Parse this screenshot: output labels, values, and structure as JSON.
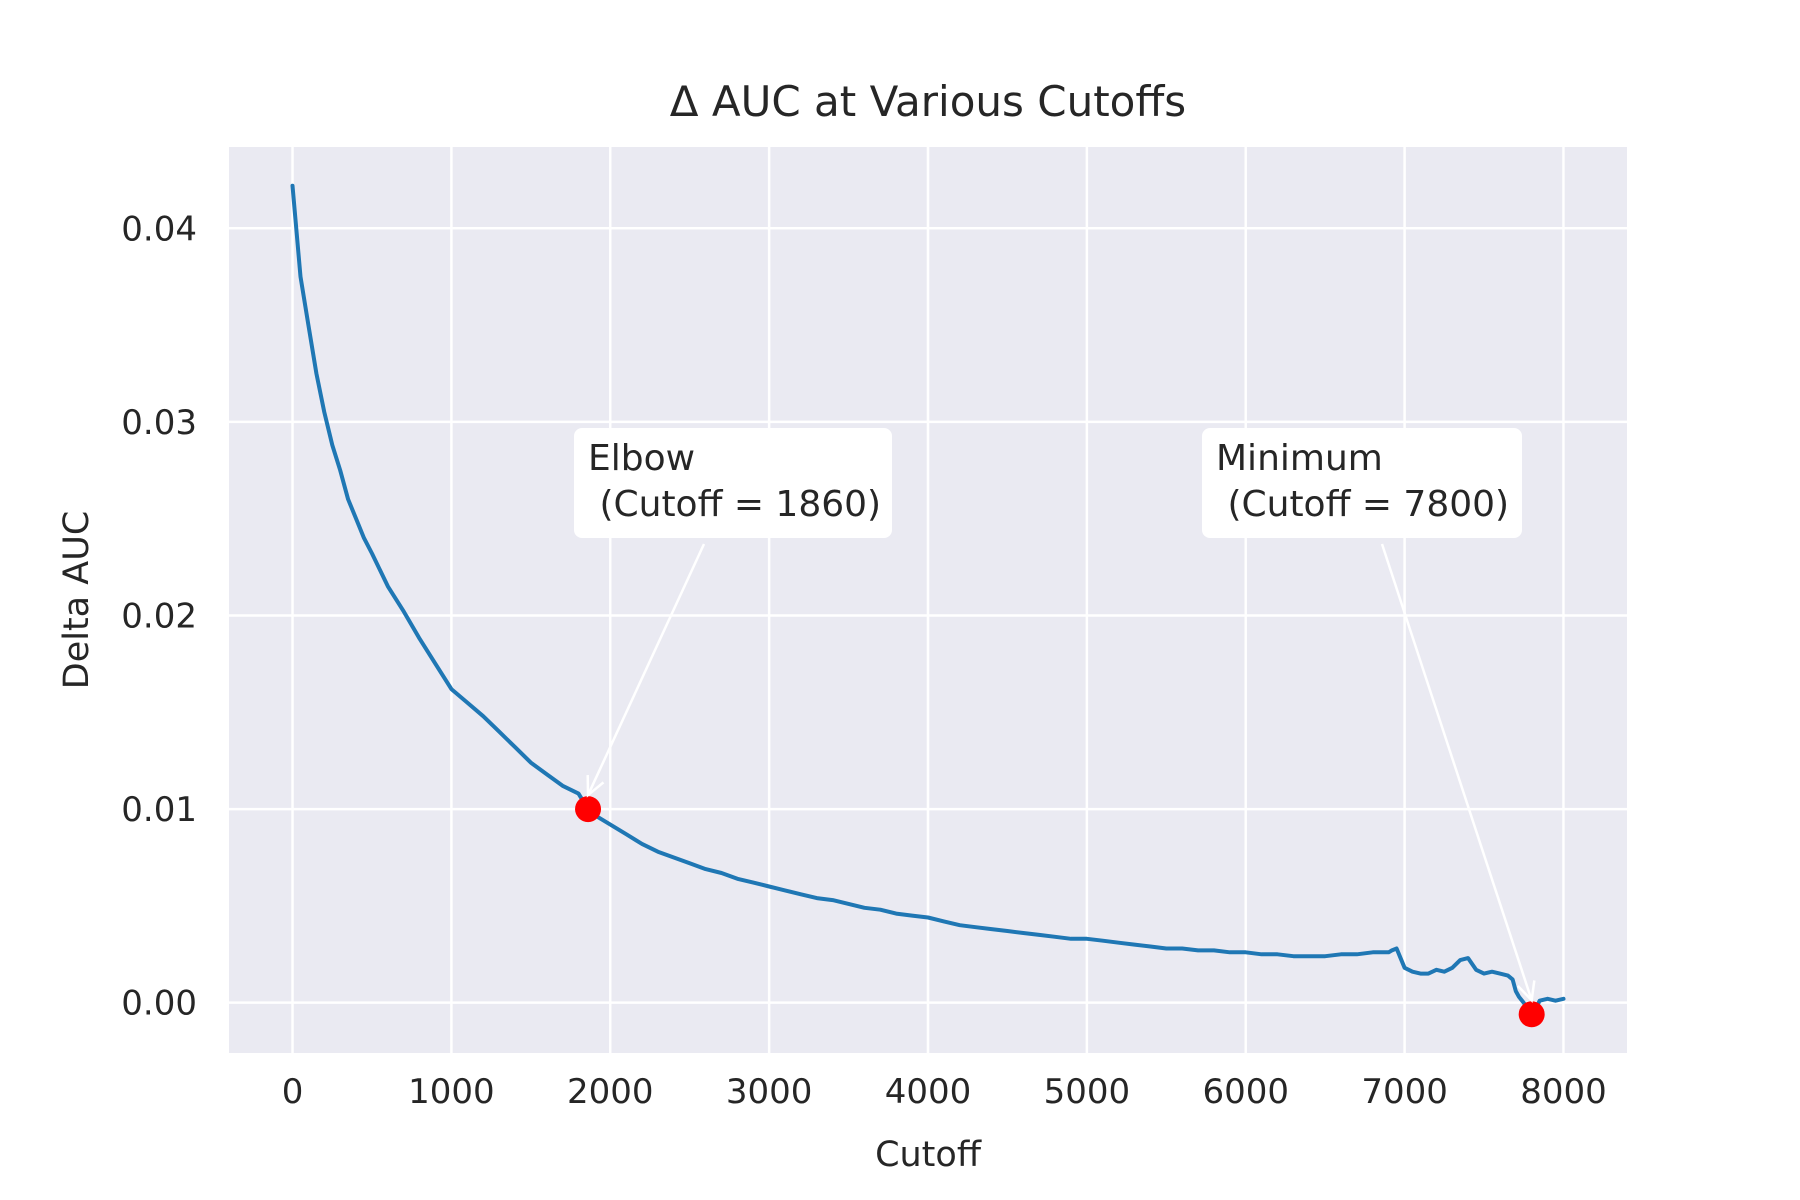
{
  "chart_data": {
    "type": "line",
    "title": "Δ AUC at Various Cutoffs",
    "xlabel": "Cutoff",
    "ylabel": "Delta AUC",
    "xlim": [
      -400,
      8400
    ],
    "ylim": [
      -0.0026,
      0.0442
    ],
    "xticks": [
      0,
      1000,
      2000,
      3000,
      4000,
      5000,
      6000,
      7000,
      8000
    ],
    "xtick_labels": [
      "0",
      "1000",
      "2000",
      "3000",
      "4000",
      "5000",
      "6000",
      "7000",
      "8000"
    ],
    "yticks": [
      0.0,
      0.01,
      0.02,
      0.03,
      0.04
    ],
    "ytick_labels": [
      "0.00",
      "0.01",
      "0.02",
      "0.03",
      "0.04"
    ],
    "grid": true,
    "line_color": "#1f77b4",
    "marker_color": "#ff0000",
    "background": "#eaeaf2",
    "series": [
      {
        "x": [
          0,
          50,
          100,
          150,
          200,
          250,
          300,
          350,
          400,
          450,
          500,
          600,
          700,
          800,
          900,
          1000,
          1100,
          1200,
          1300,
          1400,
          1500,
          1600,
          1700,
          1800,
          1860,
          1900,
          2000,
          2100,
          2200,
          2300,
          2400,
          2500,
          2600,
          2700,
          2800,
          2900,
          3000,
          3100,
          3200,
          3300,
          3400,
          3500,
          3600,
          3700,
          3800,
          3900,
          4000,
          4100,
          4200,
          4300,
          4400,
          4500,
          4600,
          4700,
          4800,
          4900,
          5000,
          5100,
          5200,
          5300,
          5400,
          5500,
          5600,
          5700,
          5800,
          5900,
          6000,
          6100,
          6200,
          6300,
          6400,
          6500,
          6600,
          6700,
          6800,
          6900,
          6920,
          6950,
          7000,
          7050,
          7100,
          7150,
          7200,
          7250,
          7300,
          7350,
          7400,
          7450,
          7500,
          7550,
          7600,
          7650,
          7680,
          7700,
          7720,
          7750,
          7780,
          7800,
          7820,
          7850,
          7900,
          7950,
          8000
        ],
        "y": [
          0.0422,
          0.0375,
          0.035,
          0.0325,
          0.0305,
          0.0288,
          0.0275,
          0.026,
          0.025,
          0.024,
          0.0232,
          0.0215,
          0.0202,
          0.0188,
          0.0175,
          0.0162,
          0.0155,
          0.0148,
          0.014,
          0.0132,
          0.0124,
          0.0118,
          0.0112,
          0.0108,
          0.01,
          0.0097,
          0.0092,
          0.0087,
          0.0082,
          0.0078,
          0.0075,
          0.0072,
          0.0069,
          0.0067,
          0.0064,
          0.0062,
          0.006,
          0.0058,
          0.0056,
          0.0054,
          0.0053,
          0.0051,
          0.0049,
          0.0048,
          0.0046,
          0.0045,
          0.0044,
          0.0042,
          0.004,
          0.0039,
          0.0038,
          0.0037,
          0.0036,
          0.0035,
          0.0034,
          0.0033,
          0.0033,
          0.0032,
          0.0031,
          0.003,
          0.0029,
          0.0028,
          0.0028,
          0.0027,
          0.0027,
          0.0026,
          0.0026,
          0.0025,
          0.0025,
          0.0024,
          0.0024,
          0.0024,
          0.0025,
          0.0025,
          0.0026,
          0.0026,
          0.0027,
          0.0028,
          0.0018,
          0.0016,
          0.0015,
          0.0015,
          0.0017,
          0.0016,
          0.0018,
          0.0022,
          0.0023,
          0.0017,
          0.0015,
          0.0016,
          0.0015,
          0.0014,
          0.0012,
          0.0006,
          0.0003,
          0.0,
          -0.0004,
          -0.0006,
          -0.0004,
          0.0001,
          0.0002,
          0.0001,
          0.0002
        ]
      }
    ],
    "highlight_points": [
      {
        "x": 1860,
        "y": 0.01
      },
      {
        "x": 7800,
        "y": -0.0006
      }
    ],
    "annotations": [
      {
        "line1": "Elbow",
        "line2": " (Cutoff = 1860)",
        "x": 1860,
        "y": 0.01
      },
      {
        "line1": "Minimum",
        "line2": " (Cutoff = 7800)",
        "x": 7800,
        "y": -0.0006
      }
    ]
  }
}
